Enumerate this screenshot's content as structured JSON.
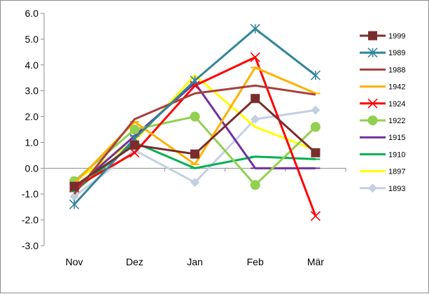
{
  "chart_data": {
    "type": "line",
    "title": "",
    "xlabel": "",
    "ylabel": "",
    "categories": [
      "Nov",
      "Dez",
      "Jan",
      "Feb",
      "Mär"
    ],
    "ylim": [
      -3.0,
      6.0
    ],
    "yticks": [
      -3.0,
      -2.0,
      -1.0,
      0.0,
      1.0,
      2.0,
      3.0,
      4.0,
      5.0,
      6.0
    ],
    "ytick_labels": [
      "-3.0",
      "-2.0",
      "-1.0",
      "0.0",
      "1.0",
      "2.0",
      "3.0",
      "4.0",
      "5.0",
      "6.0"
    ],
    "grid": false,
    "legend_position": "right",
    "series": [
      {
        "name": "1893",
        "color": "#c5cfe3",
        "marker": "diamond",
        "values": [
          -1.1,
          0.7,
          -0.55,
          1.9,
          2.25
        ]
      },
      {
        "name": "1897",
        "color": "#ffff00",
        "marker": "none",
        "values": [
          -0.5,
          1.05,
          3.6,
          1.6,
          0.7
        ]
      },
      {
        "name": "1910",
        "color": "#00b050",
        "marker": "dash",
        "values": [
          -0.9,
          1.0,
          0.0,
          0.45,
          0.35
        ]
      },
      {
        "name": "1915",
        "color": "#7030a0",
        "marker": "dash",
        "values": [
          -0.8,
          1.25,
          3.3,
          0.0,
          0.0
        ]
      },
      {
        "name": "1922",
        "color": "#92d050",
        "marker": "circle",
        "values": [
          -0.5,
          1.5,
          2.0,
          -0.65,
          1.6
        ]
      },
      {
        "name": "1924",
        "color": "#ff0000",
        "marker": "x",
        "values": [
          -0.75,
          0.6,
          3.2,
          4.3,
          -1.85
        ]
      },
      {
        "name": "1942",
        "color": "#ffb000",
        "marker": "dash",
        "values": [
          -0.6,
          1.8,
          0.15,
          3.9,
          2.9
        ]
      },
      {
        "name": "1988",
        "color": "#a5403c",
        "marker": "none",
        "values": [
          -1.0,
          1.9,
          2.9,
          3.2,
          2.85
        ]
      },
      {
        "name": "1989",
        "color": "#31849b",
        "marker": "star",
        "values": [
          -1.4,
          1.15,
          3.4,
          5.4,
          3.6
        ]
      },
      {
        "name": "1999",
        "color": "#7b2c2c",
        "marker": "square",
        "values": [
          -0.7,
          0.9,
          0.55,
          2.7,
          0.6
        ]
      }
    ],
    "legend_order": [
      "1999",
      "1989",
      "1988",
      "1942",
      "1924",
      "1922",
      "1915",
      "1910",
      "1897",
      "1893"
    ]
  }
}
